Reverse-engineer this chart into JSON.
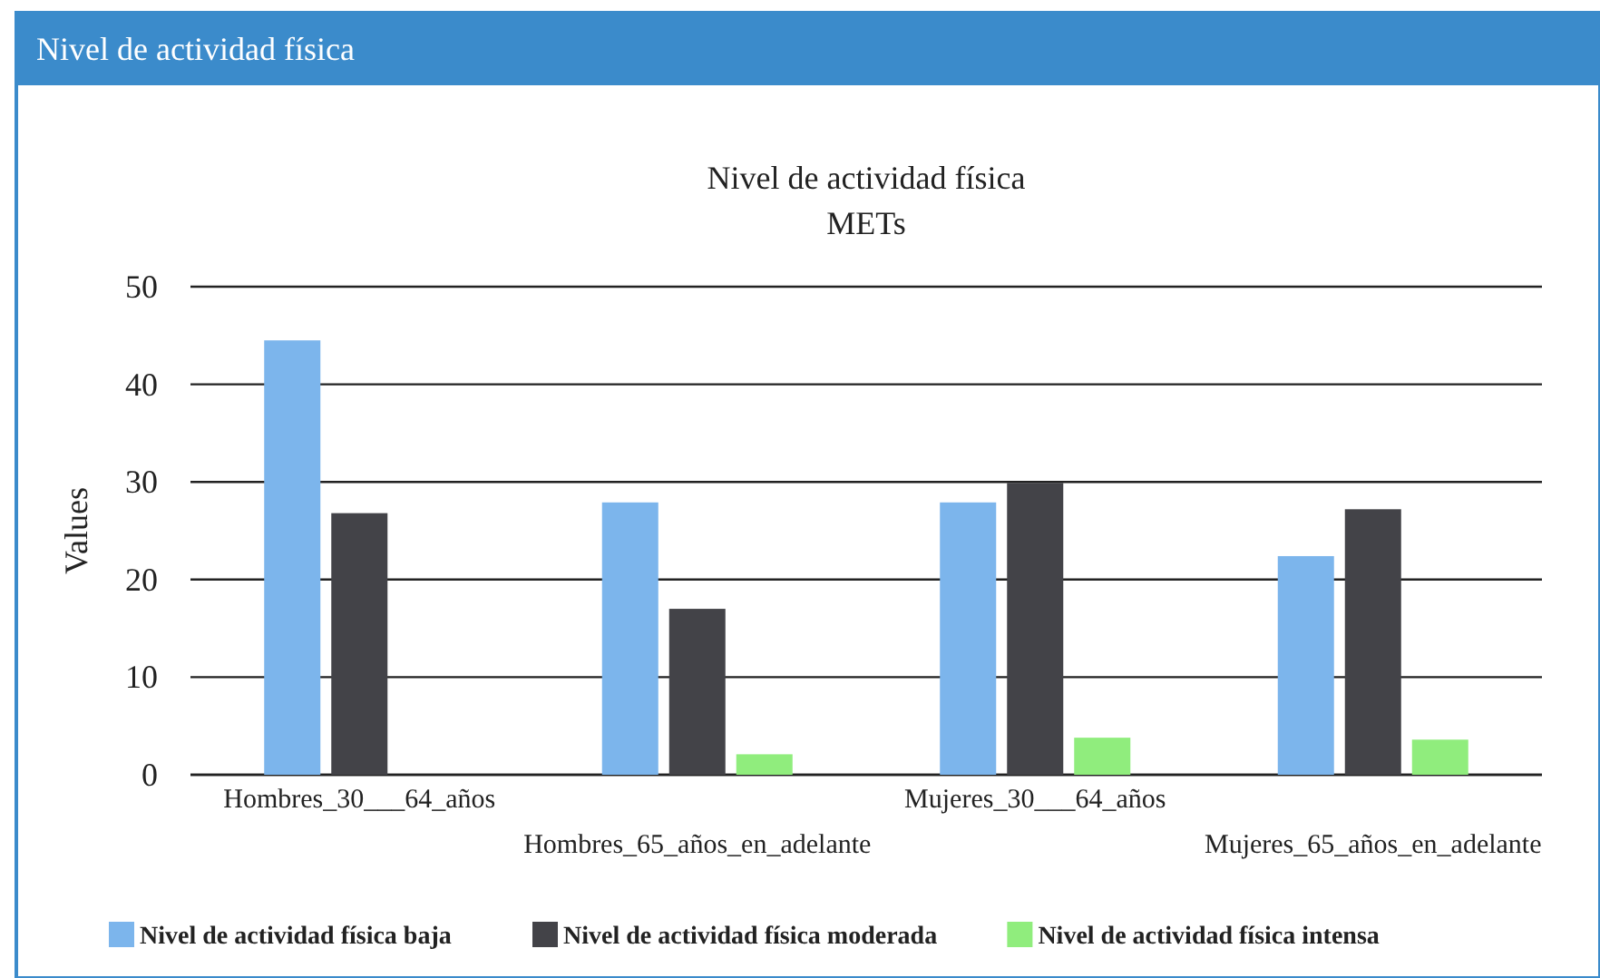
{
  "chart_data": {
    "type": "bar",
    "title": "Nivel de actividad física",
    "subtitle": "METs",
    "ylabel": "Values",
    "annotations": [
      "Nivel de actividad física"
    ],
    "categories": [
      "Hombres_30___64_años",
      "Hombres_65_años_en_adelante",
      "Mujeres_30___64_años",
      "Mujeres_65_años_en_adelante"
    ],
    "series": [
      {
        "name": "Nivel de actividad física baja",
        "color": "#7cb5ec",
        "values": [
          44.5,
          27.9,
          27.9,
          22.4
        ]
      },
      {
        "name": "Nivel de actividad física moderada",
        "color": "#434348",
        "values": [
          26.8,
          17.0,
          29.9,
          27.2
        ]
      },
      {
        "name": "Nivel de actividad física intensa",
        "color": "#90ed7d",
        "values": [
          0,
          2.1,
          3.8,
          3.6
        ]
      }
    ],
    "ylim": [
      0,
      50
    ],
    "yticks": [
      0,
      10,
      20,
      30,
      40,
      50
    ],
    "grid": "y",
    "legend": "bottom"
  }
}
